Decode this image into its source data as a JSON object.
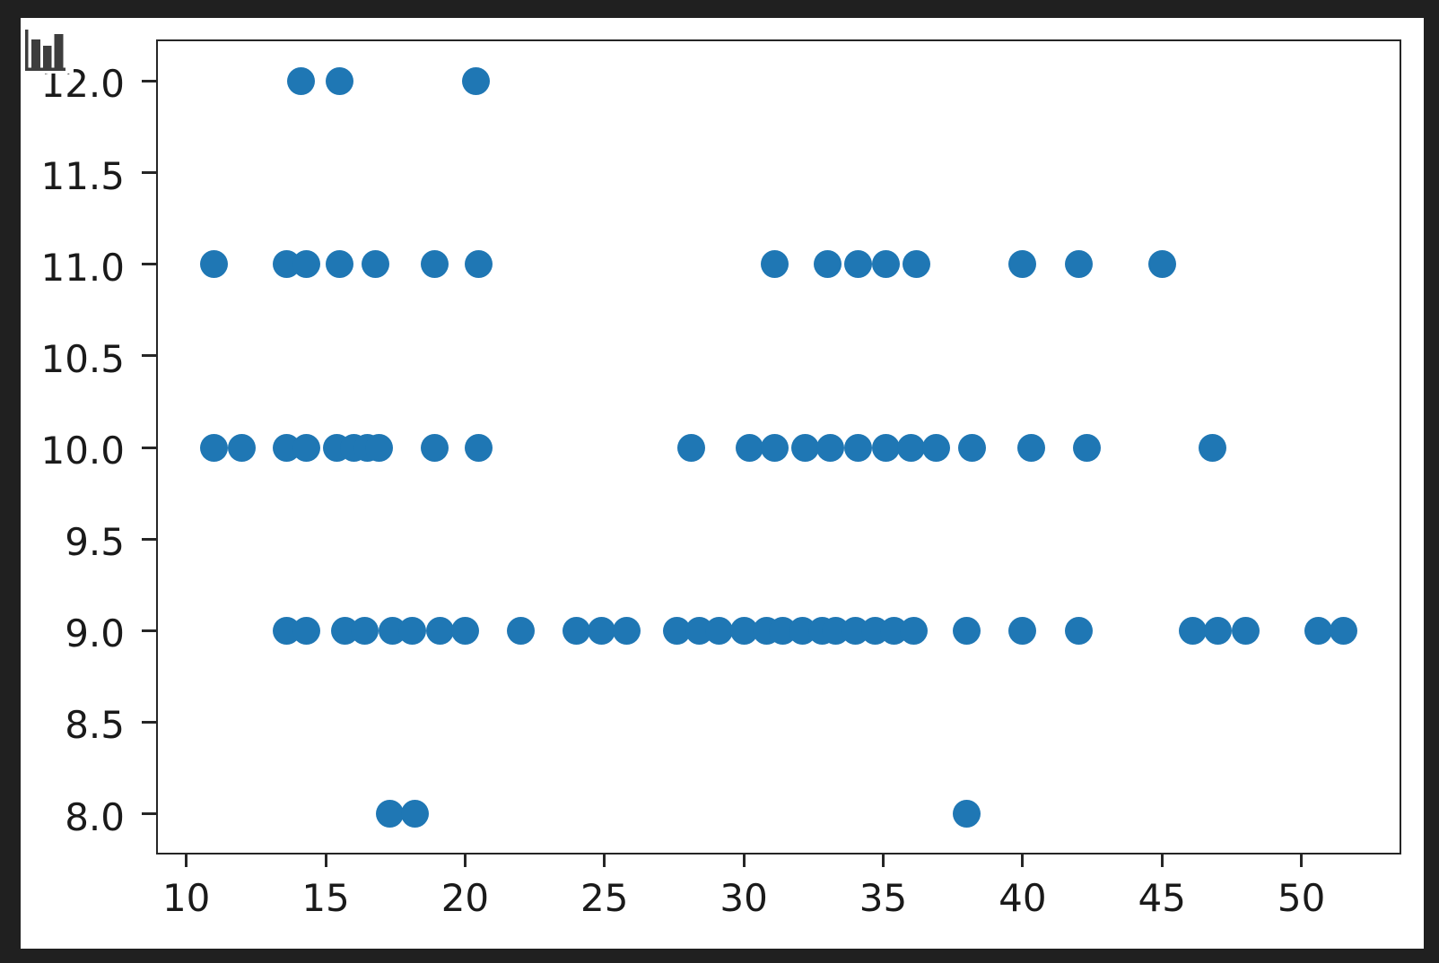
{
  "window": {
    "background_color": "#202020",
    "figure_background": "#ffffff",
    "spine_color": "#262626",
    "tick_label_color": "#1a1a1a"
  },
  "icon": {
    "name": "bar-chart-icon",
    "color": "#3d3d3d"
  },
  "chart_data": {
    "type": "scatter",
    "title": "",
    "xlabel": "",
    "ylabel": "",
    "grid": false,
    "legend": null,
    "marker_color": "#1f77b4",
    "marker_diameter_px": 31,
    "xlim": [
      8.98,
      53.52
    ],
    "ylim": [
      7.79,
      12.22
    ],
    "x_ticks": [
      10,
      15,
      20,
      25,
      30,
      35,
      40,
      45,
      50
    ],
    "x_tick_labels": [
      "10",
      "15",
      "20",
      "25",
      "30",
      "35",
      "40",
      "45",
      "50"
    ],
    "y_ticks": [
      8.0,
      8.5,
      9.0,
      9.5,
      10.0,
      10.5,
      11.0,
      11.5,
      12.0
    ],
    "y_tick_labels": [
      "8.0",
      "8.5",
      "9.0",
      "9.5",
      "10.0",
      "10.5",
      "11.0",
      "11.5",
      "12.0"
    ],
    "points": [
      [
        14.1,
        12
      ],
      [
        15.5,
        12
      ],
      [
        20.4,
        12
      ],
      [
        11.0,
        11
      ],
      [
        13.6,
        11
      ],
      [
        14.3,
        11
      ],
      [
        15.5,
        11
      ],
      [
        16.8,
        11
      ],
      [
        18.9,
        11
      ],
      [
        20.5,
        11
      ],
      [
        31.1,
        11
      ],
      [
        33.0,
        11
      ],
      [
        34.1,
        11
      ],
      [
        35.1,
        11
      ],
      [
        36.2,
        11
      ],
      [
        40.0,
        11
      ],
      [
        42.0,
        11
      ],
      [
        45.0,
        11
      ],
      [
        11.0,
        10
      ],
      [
        12.0,
        10
      ],
      [
        13.6,
        10
      ],
      [
        14.3,
        10
      ],
      [
        15.4,
        10
      ],
      [
        16.0,
        10
      ],
      [
        16.5,
        10
      ],
      [
        16.9,
        10
      ],
      [
        18.9,
        10
      ],
      [
        20.5,
        10
      ],
      [
        28.1,
        10
      ],
      [
        30.2,
        10
      ],
      [
        31.1,
        10
      ],
      [
        32.2,
        10
      ],
      [
        33.1,
        10
      ],
      [
        34.1,
        10
      ],
      [
        35.1,
        10
      ],
      [
        36.0,
        10
      ],
      [
        36.9,
        10
      ],
      [
        38.2,
        10
      ],
      [
        40.3,
        10
      ],
      [
        42.3,
        10
      ],
      [
        46.8,
        10
      ],
      [
        13.6,
        9
      ],
      [
        14.3,
        9
      ],
      [
        15.7,
        9
      ],
      [
        16.4,
        9
      ],
      [
        17.4,
        9
      ],
      [
        18.1,
        9
      ],
      [
        19.1,
        9
      ],
      [
        20.0,
        9
      ],
      [
        22.0,
        9
      ],
      [
        24.0,
        9
      ],
      [
        24.9,
        9
      ],
      [
        25.8,
        9
      ],
      [
        27.6,
        9
      ],
      [
        28.4,
        9
      ],
      [
        29.1,
        9
      ],
      [
        30.0,
        9
      ],
      [
        30.8,
        9
      ],
      [
        31.4,
        9
      ],
      [
        32.1,
        9
      ],
      [
        32.8,
        9
      ],
      [
        33.3,
        9
      ],
      [
        34.0,
        9
      ],
      [
        34.7,
        9
      ],
      [
        35.4,
        9
      ],
      [
        36.1,
        9
      ],
      [
        38.0,
        9
      ],
      [
        40.0,
        9
      ],
      [
        42.0,
        9
      ],
      [
        46.1,
        9
      ],
      [
        47.0,
        9
      ],
      [
        48.0,
        9
      ],
      [
        50.6,
        9
      ],
      [
        51.5,
        9
      ],
      [
        17.3,
        8
      ],
      [
        18.2,
        8
      ],
      [
        38.0,
        8
      ]
    ]
  }
}
